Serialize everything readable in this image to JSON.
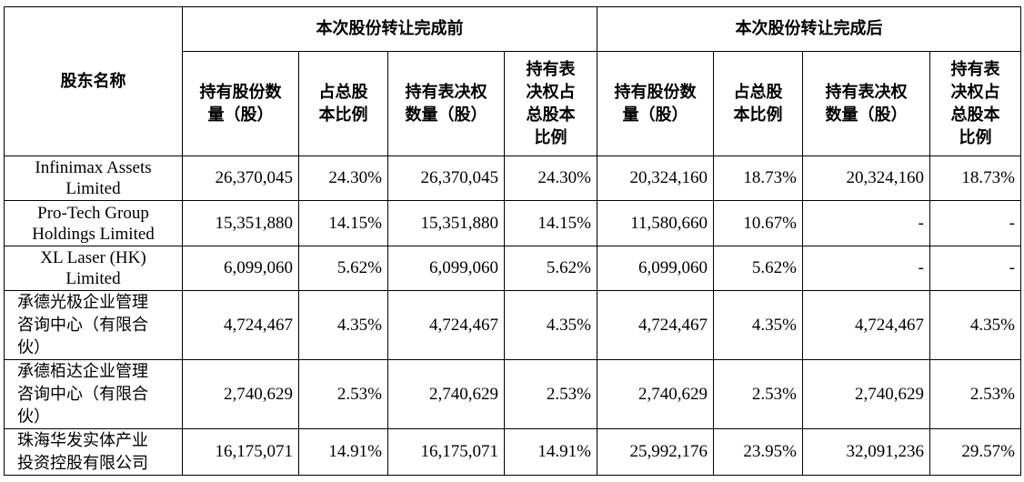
{
  "header": {
    "shareholder_name": "股东名称",
    "before_group": "本次股份转让完成前",
    "after_group": "本次股份转让完成后",
    "cols": {
      "shares_held": "持有股份数量（股）",
      "share_ratio": "占总股本比例",
      "voting_shares": "持有表决权数量（股）",
      "voting_ratio": "持有表决权占总股本比例"
    }
  },
  "rows": [
    {
      "name": "Infinimax Assets Limited",
      "before": [
        "26,370,045",
        "24.30%",
        "26,370,045",
        "24.30%"
      ],
      "after": [
        "20,324,160",
        "18.73%",
        "20,324,160",
        "18.73%"
      ]
    },
    {
      "name": "Pro-Tech Group Holdings Limited",
      "before": [
        "15,351,880",
        "14.15%",
        "15,351,880",
        "14.15%"
      ],
      "after": [
        "11,580,660",
        "10.67%",
        "-",
        "-"
      ]
    },
    {
      "name": "XL Laser (HK) Limited",
      "before": [
        "6,099,060",
        "5.62%",
        "6,099,060",
        "5.62%"
      ],
      "after": [
        "6,099,060",
        "5.62%",
        "-",
        "-"
      ]
    },
    {
      "name": "承德光极企业管理咨询中心（有限合伙）",
      "before": [
        "4,724,467",
        "4.35%",
        "4,724,467",
        "4.35%"
      ],
      "after": [
        "4,724,467",
        "4.35%",
        "4,724,467",
        "4.35%"
      ]
    },
    {
      "name": "承德栢达企业管理咨询中心（有限合伙）",
      "before": [
        "2,740,629",
        "2.53%",
        "2,740,629",
        "2.53%"
      ],
      "after": [
        "2,740,629",
        "2.53%",
        "2,740,629",
        "2.53%"
      ]
    },
    {
      "name": "珠海华发实体产业投资控股有限公司",
      "before": [
        "16,175,071",
        "14.91%",
        "16,175,071",
        "14.91%"
      ],
      "after": [
        "25,992,176",
        "23.95%",
        "32,091,236",
        "29.57%"
      ]
    }
  ]
}
